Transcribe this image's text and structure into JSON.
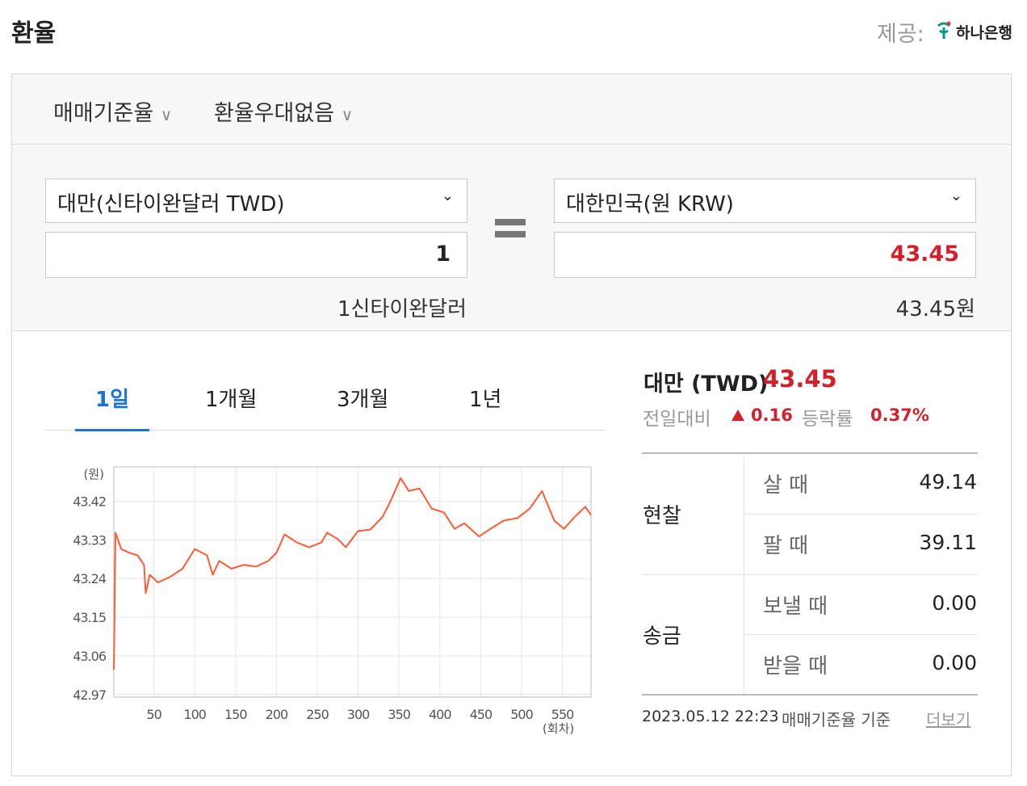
{
  "header": {
    "title": "환율",
    "provider_label": "제공:",
    "provider": "하나은행"
  },
  "options": [
    "매매기준율",
    "환율우대없음"
  ],
  "converter": {
    "from_currency": "대만(신타이완달러 TWD)",
    "from_amount": "1",
    "from_caption": "1신타이완달러",
    "to_currency": "대한민국(원 KRW)",
    "to_amount": "43.45",
    "to_caption": "43.45원"
  },
  "tabs": [
    "1일",
    "1개월",
    "3개월",
    "1년"
  ],
  "active_tab": 0,
  "chart_data": {
    "type": "line",
    "y_unit": "(원)",
    "x_unit": "(회차)",
    "color": "#ff5a36",
    "grid": true,
    "x": [
      1,
      3,
      10,
      20,
      30,
      38,
      40,
      45,
      55,
      70,
      85,
      100,
      115,
      122,
      130,
      145,
      160,
      175,
      190,
      200,
      210,
      225,
      240,
      255,
      262,
      275,
      285,
      300,
      315,
      330,
      340,
      352,
      362,
      375,
      390,
      405,
      418,
      430,
      448,
      462,
      478,
      495,
      510,
      525,
      540,
      552,
      565,
      578,
      585
    ],
    "values": [
      43.028,
      43.347,
      43.309,
      43.3,
      43.294,
      43.272,
      43.206,
      43.249,
      43.231,
      43.244,
      43.263,
      43.309,
      43.294,
      43.249,
      43.281,
      43.263,
      43.272,
      43.268,
      43.281,
      43.3,
      43.343,
      43.324,
      43.313,
      43.324,
      43.347,
      43.332,
      43.313,
      43.351,
      43.354,
      43.384,
      43.422,
      43.474,
      43.444,
      43.45,
      43.403,
      43.394,
      43.356,
      43.369,
      43.338,
      43.356,
      43.375,
      43.381,
      43.403,
      43.444,
      43.375,
      43.356,
      43.384,
      43.407,
      43.388
    ],
    "xlim": [
      1,
      585
    ],
    "ylim": [
      42.964,
      43.5
    ],
    "xticks": [
      50,
      100,
      150,
      200,
      250,
      300,
      350,
      400,
      450,
      500,
      550
    ],
    "yticks": [
      42.97,
      43.06,
      43.15,
      43.24,
      43.33,
      43.42
    ]
  },
  "summary": {
    "name": "대만 (TWD)",
    "rate": "43.45",
    "change_label": "전일대비",
    "change": "0.16",
    "rate_label": "등락률",
    "change_rate": "0.37%"
  },
  "table": [
    {
      "label": "현찰",
      "rows": [
        {
          "label": "살 때",
          "value": "49.14"
        },
        {
          "label": "팔 때",
          "value": "39.11"
        }
      ]
    },
    {
      "label": "송금",
      "rows": [
        {
          "label": "보낼 때",
          "value": "0.00"
        },
        {
          "label": "받을 때",
          "value": "0.00"
        }
      ]
    }
  ],
  "footer": {
    "date": "2023.05.12 22:23",
    "basis": "매매기준율 기준",
    "more": "더보기"
  }
}
